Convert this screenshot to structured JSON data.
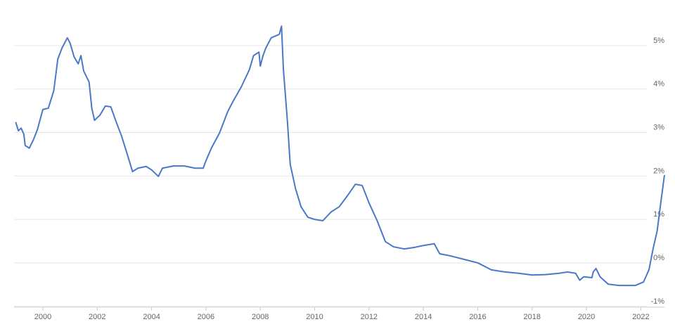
{
  "chart_data": {
    "type": "line",
    "x": [
      1999.0,
      1999.1,
      1999.2,
      1999.3,
      1999.35,
      1999.5,
      1999.65,
      1999.8,
      2000.0,
      2000.2,
      2000.4,
      2000.55,
      2000.7,
      2000.9,
      2001.0,
      2001.15,
      2001.3,
      2001.4,
      2001.5,
      2001.7,
      2001.8,
      2001.9,
      2002.1,
      2002.3,
      2002.5,
      2002.7,
      2002.9,
      2003.1,
      2003.3,
      2003.5,
      2003.8,
      2004.0,
      2004.25,
      2004.4,
      2004.8,
      2005.2,
      2005.6,
      2005.9,
      2006.0,
      2006.2,
      2006.5,
      2006.8,
      2007.0,
      2007.3,
      2007.6,
      2007.75,
      2007.95,
      2008.0,
      2008.1,
      2008.2,
      2008.4,
      2008.7,
      2008.78,
      2008.85,
      2009.0,
      2009.1,
      2009.3,
      2009.5,
      2009.75,
      2010.0,
      2010.3,
      2010.6,
      2010.9,
      2011.2,
      2011.5,
      2011.75,
      2012.0,
      2012.3,
      2012.6,
      2012.9,
      2013.3,
      2013.7,
      2014.0,
      2014.4,
      2014.6,
      2015.0,
      2015.5,
      2016.0,
      2016.5,
      2017.0,
      2017.5,
      2018.0,
      2018.5,
      2019.0,
      2019.3,
      2019.6,
      2019.75,
      2019.9,
      2020.2,
      2020.25,
      2020.35,
      2020.5,
      2020.8,
      2021.2,
      2021.8,
      2022.1,
      2022.3,
      2022.45,
      2022.6,
      2022.75,
      2022.87
    ],
    "values": [
      3.24,
      3.04,
      3.1,
      2.96,
      2.7,
      2.64,
      2.83,
      3.07,
      3.53,
      3.56,
      3.96,
      4.69,
      4.94,
      5.18,
      5.06,
      4.74,
      4.58,
      4.77,
      4.42,
      4.16,
      3.56,
      3.28,
      3.4,
      3.61,
      3.59,
      3.24,
      2.91,
      2.51,
      2.1,
      2.18,
      2.22,
      2.14,
      1.99,
      2.18,
      2.23,
      2.23,
      2.18,
      2.18,
      2.35,
      2.64,
      2.99,
      3.48,
      3.72,
      4.05,
      4.45,
      4.77,
      4.85,
      4.53,
      4.77,
      4.94,
      5.18,
      5.26,
      5.45,
      4.45,
      3.24,
      2.27,
      1.7,
      1.29,
      1.05,
      1.0,
      0.97,
      1.17,
      1.29,
      1.54,
      1.81,
      1.78,
      1.38,
      0.97,
      0.49,
      0.37,
      0.32,
      0.36,
      0.4,
      0.44,
      0.21,
      0.16,
      0.08,
      0.0,
      -0.16,
      -0.21,
      -0.24,
      -0.28,
      -0.27,
      -0.24,
      -0.21,
      -0.24,
      -0.4,
      -0.32,
      -0.34,
      -0.21,
      -0.13,
      -0.32,
      -0.49,
      -0.52,
      -0.52,
      -0.44,
      -0.16,
      0.32,
      0.73,
      1.46,
      2.02
    ],
    "color": "#4a78c8",
    "xlim": [
      1998.94,
      2022.87
    ],
    "xticks": [
      2000,
      2002,
      2004,
      2006,
      2008,
      2010,
      2012,
      2014,
      2016,
      2018,
      2020,
      2022
    ],
    "ylim": [
      -1.02,
      6.05
    ],
    "yticks": [
      {
        "value": -1,
        "label": "-1%"
      },
      {
        "value": 0,
        "label": "0%"
      },
      {
        "value": 1,
        "label": "1%"
      },
      {
        "value": 2,
        "label": "2%"
      },
      {
        "value": 3,
        "label": "3%"
      },
      {
        "value": 4,
        "label": "4%"
      },
      {
        "value": 5,
        "label": "5%"
      }
    ],
    "grid": true
  }
}
